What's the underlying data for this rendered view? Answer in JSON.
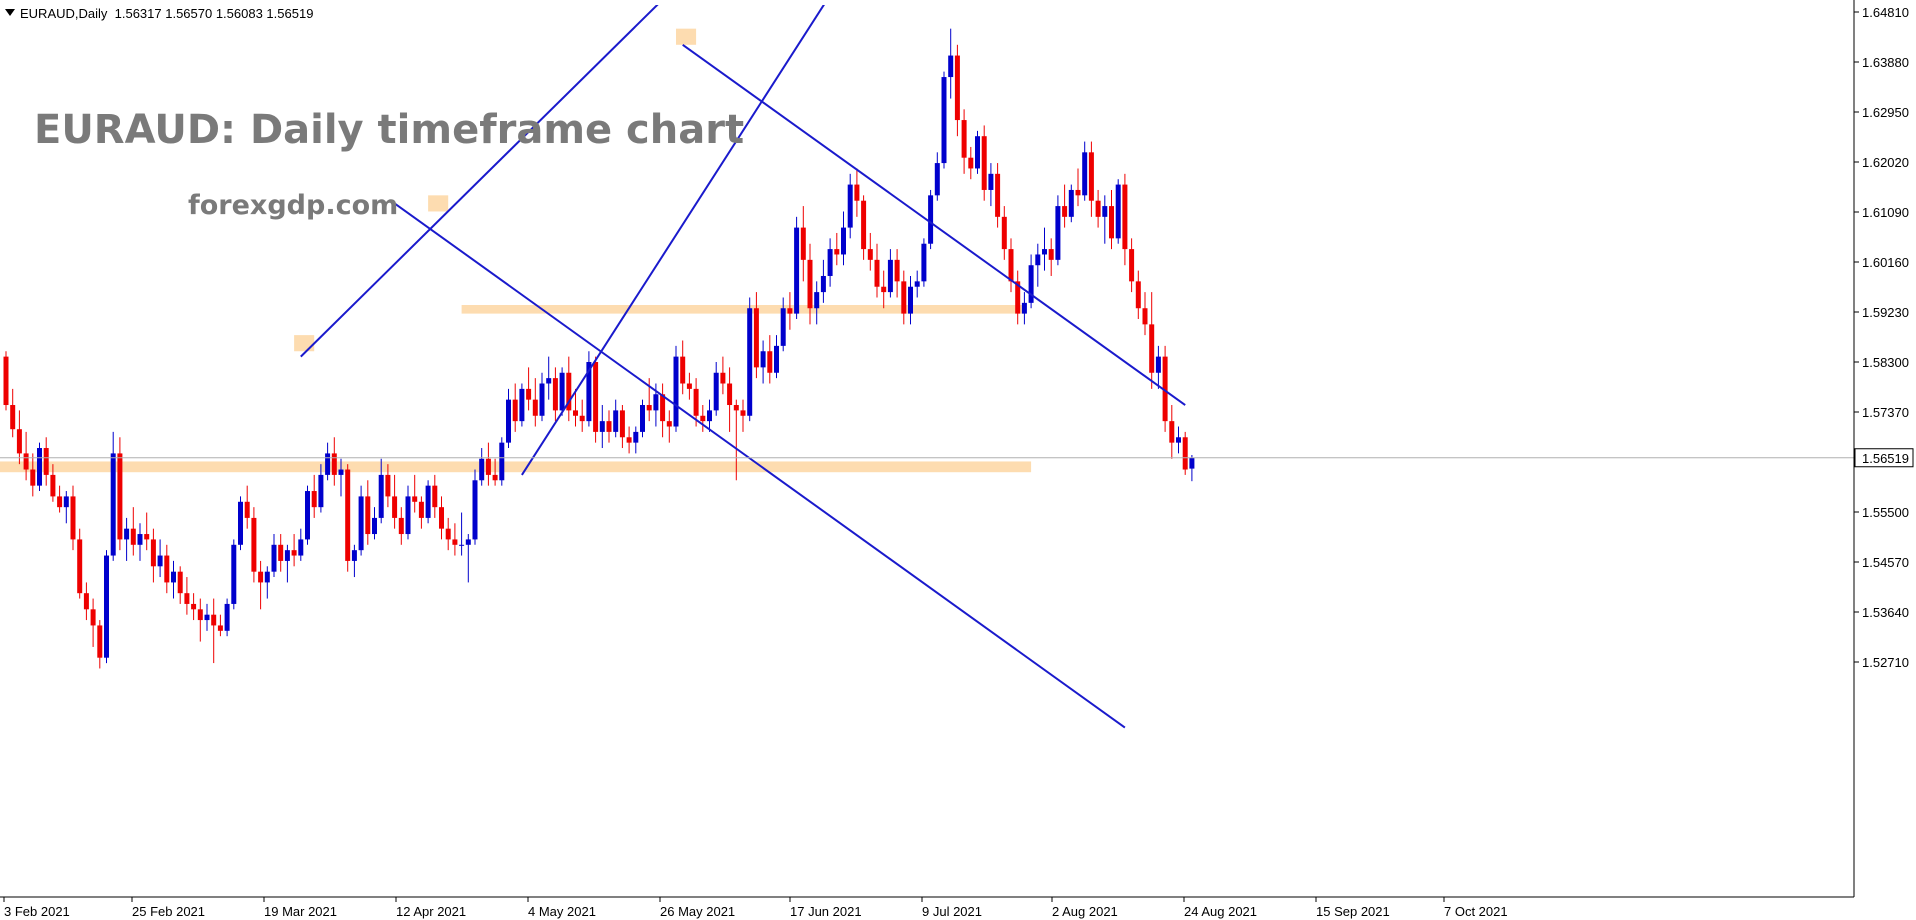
{
  "header": {
    "symbol_line": "EURAUD,Daily  1.56317 1.56570 1.56083 1.56519"
  },
  "annotations": {
    "title": "EURAUD: Daily timeframe chart",
    "site": "forexgdp.com"
  },
  "colors": {
    "bull": "#0000cc",
    "bear": "#ee0000",
    "trendline": "#1a1acc",
    "zone": "#fddcb0",
    "price_line": "#b0b0b0",
    "axis": "#000000"
  },
  "chart_data": {
    "type": "candlestick",
    "symbol": "EURAUD",
    "timeframe": "Daily",
    "ohlc_last": {
      "open": 1.56317,
      "high": 1.5657,
      "low": 1.56083,
      "close": 1.56519
    },
    "current_price_label": "1.56519",
    "ylim": [
      1.5225,
      1.6505
    ],
    "y_ticks": [
      "1.64810",
      "1.63880",
      "1.62950",
      "1.62020",
      "1.61090",
      "1.60160",
      "1.59230",
      "1.58300",
      "1.57370",
      "1.56440",
      "1.55500",
      "1.54570",
      "1.53640",
      "1.52710"
    ],
    "x_ticks": [
      "3 Feb 2021",
      "25 Feb 2021",
      "19 Mar 2021",
      "12 Apr 2021",
      "4 May 2021",
      "26 May 2021",
      "17 Jun 2021",
      "9 Jul 2021",
      "2 Aug 2021",
      "24 Aug 2021",
      "15 Sep 2021",
      "7 Oct 2021"
    ],
    "candles": [
      [
        1.584,
        1.585,
        1.574,
        1.575
      ],
      [
        1.575,
        1.578,
        1.569,
        1.5705
      ],
      [
        1.5705,
        1.574,
        1.564,
        1.566
      ],
      [
        1.566,
        1.57,
        1.561,
        1.563
      ],
      [
        1.563,
        1.566,
        1.558,
        1.56
      ],
      [
        1.56,
        1.568,
        1.559,
        1.567
      ],
      [
        1.567,
        1.569,
        1.56,
        1.562
      ],
      [
        1.562,
        1.564,
        1.557,
        1.558
      ],
      [
        1.558,
        1.56,
        1.555,
        1.556
      ],
      [
        1.556,
        1.559,
        1.553,
        1.558
      ],
      [
        1.558,
        1.56,
        1.548,
        1.55
      ],
      [
        1.55,
        1.552,
        1.539,
        1.54
      ],
      [
        1.54,
        1.542,
        1.535,
        1.537
      ],
      [
        1.537,
        1.539,
        1.53,
        1.534
      ],
      [
        1.534,
        1.535,
        1.526,
        1.528
      ],
      [
        1.528,
        1.548,
        1.527,
        1.547
      ],
      [
        1.547,
        1.57,
        1.546,
        1.566
      ],
      [
        1.566,
        1.569,
        1.548,
        1.55
      ],
      [
        1.55,
        1.554,
        1.546,
        1.552
      ],
      [
        1.552,
        1.556,
        1.547,
        1.549
      ],
      [
        1.549,
        1.553,
        1.546,
        1.551
      ],
      [
        1.551,
        1.555,
        1.548,
        1.55
      ],
      [
        1.55,
        1.552,
        1.542,
        1.545
      ],
      [
        1.545,
        1.55,
        1.543,
        1.547
      ],
      [
        1.547,
        1.549,
        1.54,
        1.542
      ],
      [
        1.542,
        1.546,
        1.539,
        1.544
      ],
      [
        1.544,
        1.545,
        1.538,
        1.54
      ],
      [
        1.54,
        1.543,
        1.536,
        1.538
      ],
      [
        1.538,
        1.54,
        1.535,
        1.537
      ],
      [
        1.537,
        1.539,
        1.531,
        1.535
      ],
      [
        1.535,
        1.538,
        1.533,
        1.536
      ],
      [
        1.536,
        1.539,
        1.527,
        1.534
      ],
      [
        1.534,
        1.536,
        1.532,
        1.533
      ],
      [
        1.533,
        1.539,
        1.532,
        1.538
      ],
      [
        1.538,
        1.55,
        1.537,
        1.549
      ],
      [
        1.549,
        1.558,
        1.548,
        1.557
      ],
      [
        1.557,
        1.56,
        1.552,
        1.554
      ],
      [
        1.554,
        1.556,
        1.542,
        1.544
      ],
      [
        1.544,
        1.546,
        1.537,
        1.542
      ],
      [
        1.542,
        1.545,
        1.539,
        1.544
      ],
      [
        1.544,
        1.551,
        1.543,
        1.549
      ],
      [
        1.549,
        1.551,
        1.544,
        1.546
      ],
      [
        1.546,
        1.549,
        1.542,
        1.548
      ],
      [
        1.548,
        1.551,
        1.545,
        1.547
      ],
      [
        1.547,
        1.552,
        1.546,
        1.55
      ],
      [
        1.55,
        1.56,
        1.549,
        1.559
      ],
      [
        1.559,
        1.562,
        1.554,
        1.556
      ],
      [
        1.556,
        1.564,
        1.555,
        1.562
      ],
      [
        1.562,
        1.568,
        1.561,
        1.566
      ],
      [
        1.566,
        1.569,
        1.56,
        1.562
      ],
      [
        1.562,
        1.565,
        1.558,
        1.563
      ],
      [
        1.563,
        1.564,
        1.544,
        1.546
      ],
      [
        1.546,
        1.549,
        1.543,
        1.548
      ],
      [
        1.548,
        1.56,
        1.547,
        1.558
      ],
      [
        1.558,
        1.561,
        1.549,
        1.551
      ],
      [
        1.551,
        1.556,
        1.55,
        1.554
      ],
      [
        1.554,
        1.565,
        1.553,
        1.562
      ],
      [
        1.562,
        1.564,
        1.556,
        1.558
      ],
      [
        1.558,
        1.562,
        1.552,
        1.554
      ],
      [
        1.554,
        1.556,
        1.549,
        1.551
      ],
      [
        1.551,
        1.56,
        1.55,
        1.558
      ],
      [
        1.558,
        1.562,
        1.555,
        1.557
      ],
      [
        1.557,
        1.558,
        1.552,
        1.554
      ],
      [
        1.554,
        1.561,
        1.553,
        1.56
      ],
      [
        1.56,
        1.562,
        1.554,
        1.556
      ],
      [
        1.556,
        1.558,
        1.55,
        1.552
      ],
      [
        1.552,
        1.554,
        1.548,
        1.55
      ],
      [
        1.55,
        1.553,
        1.547,
        1.549
      ],
      [
        1.549,
        1.555,
        1.547,
        1.549
      ],
      [
        1.549,
        1.551,
        1.542,
        1.55
      ],
      [
        1.55,
        1.563,
        1.549,
        1.561
      ],
      [
        1.561,
        1.567,
        1.56,
        1.565
      ],
      [
        1.565,
        1.568,
        1.56,
        1.562
      ],
      [
        1.562,
        1.565,
        1.56,
        1.561
      ],
      [
        1.561,
        1.569,
        1.56,
        1.568
      ],
      [
        1.568,
        1.578,
        1.567,
        1.576
      ],
      [
        1.576,
        1.579,
        1.57,
        1.572
      ],
      [
        1.572,
        1.579,
        1.571,
        1.578
      ],
      [
        1.578,
        1.582,
        1.574,
        1.576
      ],
      [
        1.576,
        1.58,
        1.571,
        1.573
      ],
      [
        1.573,
        1.581,
        1.572,
        1.579
      ],
      [
        1.579,
        1.584,
        1.576,
        1.58
      ],
      [
        1.58,
        1.582,
        1.572,
        1.574
      ],
      [
        1.574,
        1.582,
        1.573,
        1.581
      ],
      [
        1.581,
        1.584,
        1.572,
        1.574
      ],
      [
        1.574,
        1.578,
        1.571,
        1.573
      ],
      [
        1.573,
        1.576,
        1.57,
        1.572
      ],
      [
        1.572,
        1.585,
        1.571,
        1.583
      ],
      [
        1.583,
        1.584,
        1.568,
        1.57
      ],
      [
        1.57,
        1.575,
        1.567,
        1.572
      ],
      [
        1.572,
        1.574,
        1.568,
        1.57
      ],
      [
        1.57,
        1.576,
        1.569,
        1.574
      ],
      [
        1.574,
        1.575,
        1.567,
        1.569
      ],
      [
        1.569,
        1.571,
        1.566,
        1.568
      ],
      [
        1.568,
        1.571,
        1.566,
        1.57
      ],
      [
        1.57,
        1.576,
        1.569,
        1.575
      ],
      [
        1.575,
        1.58,
        1.572,
        1.574
      ],
      [
        1.574,
        1.579,
        1.571,
        1.577
      ],
      [
        1.577,
        1.579,
        1.569,
        1.572
      ],
      [
        1.572,
        1.574,
        1.568,
        1.571
      ],
      [
        1.571,
        1.586,
        1.57,
        1.584
      ],
      [
        1.584,
        1.587,
        1.577,
        1.579
      ],
      [
        1.579,
        1.581,
        1.576,
        1.578
      ],
      [
        1.578,
        1.58,
        1.571,
        1.573
      ],
      [
        1.573,
        1.575,
        1.57,
        1.572
      ],
      [
        1.572,
        1.576,
        1.57,
        1.574
      ],
      [
        1.574,
        1.583,
        1.573,
        1.581
      ],
      [
        1.581,
        1.584,
        1.577,
        1.579
      ],
      [
        1.579,
        1.582,
        1.57,
        1.575
      ],
      [
        1.575,
        1.576,
        1.561,
        1.574
      ],
      [
        1.574,
        1.576,
        1.57,
        1.573
      ],
      [
        1.573,
        1.595,
        1.572,
        1.593
      ],
      [
        1.593,
        1.596,
        1.58,
        1.582
      ],
      [
        1.582,
        1.587,
        1.579,
        1.585
      ],
      [
        1.585,
        1.588,
        1.579,
        1.581
      ],
      [
        1.581,
        1.588,
        1.58,
        1.586
      ],
      [
        1.586,
        1.595,
        1.585,
        1.593
      ],
      [
        1.593,
        1.596,
        1.589,
        1.592
      ],
      [
        1.592,
        1.61,
        1.591,
        1.608
      ],
      [
        1.608,
        1.612,
        1.598,
        1.602
      ],
      [
        1.602,
        1.605,
        1.59,
        1.593
      ],
      [
        1.593,
        1.598,
        1.59,
        1.596
      ],
      [
        1.596,
        1.602,
        1.594,
        1.599
      ],
      [
        1.599,
        1.606,
        1.597,
        1.604
      ],
      [
        1.604,
        1.607,
        1.601,
        1.603
      ],
      [
        1.603,
        1.611,
        1.601,
        1.608
      ],
      [
        1.608,
        1.618,
        1.606,
        1.616
      ],
      [
        1.616,
        1.619,
        1.61,
        1.613
      ],
      [
        1.613,
        1.614,
        1.602,
        1.604
      ],
      [
        1.604,
        1.607,
        1.6,
        1.602
      ],
      [
        1.602,
        1.605,
        1.595,
        1.597
      ],
      [
        1.597,
        1.6,
        1.593,
        1.596
      ],
      [
        1.596,
        1.604,
        1.595,
        1.602
      ],
      [
        1.602,
        1.604,
        1.595,
        1.598
      ],
      [
        1.598,
        1.6,
        1.59,
        1.592
      ],
      [
        1.592,
        1.599,
        1.59,
        1.597
      ],
      [
        1.597,
        1.6,
        1.595,
        1.598
      ],
      [
        1.598,
        1.606,
        1.597,
        1.605
      ],
      [
        1.605,
        1.615,
        1.604,
        1.614
      ],
      [
        1.614,
        1.622,
        1.613,
        1.62
      ],
      [
        1.62,
        1.637,
        1.619,
        1.636
      ],
      [
        1.636,
        1.645,
        1.632,
        1.64
      ],
      [
        1.64,
        1.642,
        1.625,
        1.628
      ],
      [
        1.628,
        1.63,
        1.618,
        1.621
      ],
      [
        1.621,
        1.623,
        1.617,
        1.619
      ],
      [
        1.619,
        1.626,
        1.618,
        1.625
      ],
      [
        1.625,
        1.627,
        1.613,
        1.615
      ],
      [
        1.615,
        1.62,
        1.612,
        1.618
      ],
      [
        1.618,
        1.62,
        1.608,
        1.61
      ],
      [
        1.61,
        1.612,
        1.602,
        1.604
      ],
      [
        1.604,
        1.606,
        1.596,
        1.598
      ],
      [
        1.598,
        1.6,
        1.59,
        1.592
      ],
      [
        1.592,
        1.596,
        1.59,
        1.594
      ],
      [
        1.594,
        1.603,
        1.593,
        1.601
      ],
      [
        1.601,
        1.605,
        1.597,
        1.603
      ],
      [
        1.603,
        1.608,
        1.6,
        1.604
      ],
      [
        1.604,
        1.606,
        1.599,
        1.602
      ],
      [
        1.602,
        1.614,
        1.601,
        1.612
      ],
      [
        1.612,
        1.616,
        1.608,
        1.61
      ],
      [
        1.61,
        1.616,
        1.609,
        1.615
      ],
      [
        1.615,
        1.619,
        1.612,
        1.614
      ],
      [
        1.614,
        1.624,
        1.613,
        1.622
      ],
      [
        1.622,
        1.624,
        1.61,
        1.613
      ],
      [
        1.613,
        1.615,
        1.608,
        1.61
      ],
      [
        1.61,
        1.614,
        1.605,
        1.612
      ],
      [
        1.612,
        1.615,
        1.604,
        1.606
      ],
      [
        1.606,
        1.617,
        1.605,
        1.616
      ],
      [
        1.616,
        1.618,
        1.601,
        1.604
      ],
      [
        1.604,
        1.606,
        1.596,
        1.598
      ],
      [
        1.598,
        1.6,
        1.591,
        1.593
      ],
      [
        1.593,
        1.596,
        1.588,
        1.59
      ],
      [
        1.59,
        1.596,
        1.578,
        1.581
      ],
      [
        1.581,
        1.586,
        1.578,
        1.584
      ],
      [
        1.584,
        1.586,
        1.57,
        1.572
      ],
      [
        1.572,
        1.575,
        1.565,
        1.568
      ],
      [
        1.568,
        1.571,
        1.566,
        1.569
      ],
      [
        1.569,
        1.57,
        1.562,
        1.563
      ],
      [
        1.56317,
        1.5657,
        1.56083,
        1.56519
      ]
    ],
    "channel_lines": [
      {
        "name": "channel-1-upper",
        "points": [
          [
            44,
            1.584
          ],
          [
            105,
            1.659
          ]
        ]
      },
      {
        "name": "channel-1-lower",
        "points": [
          [
            77,
            1.562
          ],
          [
            127,
            1.659
          ]
        ]
      },
      {
        "name": "channel-2-upper",
        "points": [
          [
            101,
            1.642
          ],
          [
            176,
            1.575
          ]
        ]
      },
      {
        "name": "channel-2-lower",
        "points": [
          [
            58,
            1.6125
          ],
          [
            167,
            1.515
          ]
        ]
      }
    ],
    "zones": [
      {
        "name": "support-zone-main",
        "x1": -9,
        "x2": 153,
        "y_top": 1.5645,
        "y_bottom": 1.5625
      },
      {
        "name": "support-zone-mid",
        "x1": 68,
        "x2": 152,
        "y_top": 1.5936,
        "y_bottom": 1.592
      },
      {
        "name": "swing-box-1",
        "x1": 43,
        "x2": 46,
        "y_top": 1.588,
        "y_bottom": 1.585
      },
      {
        "name": "swing-box-2",
        "x1": 63,
        "x2": 66,
        "y_top": 1.614,
        "y_bottom": 1.611
      },
      {
        "name": "swing-box-3",
        "x1": 100,
        "x2": 103,
        "y_top": 1.645,
        "y_bottom": 1.642
      }
    ]
  }
}
